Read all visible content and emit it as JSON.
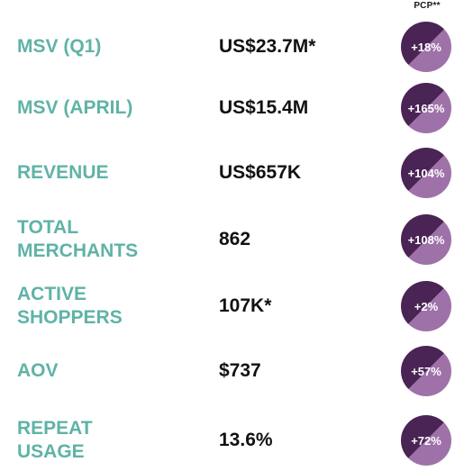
{
  "header": {
    "pcp_label": "PCP**"
  },
  "rows": [
    {
      "label": "MSV (Q1)",
      "value": "US$23.7M*",
      "change": "+18%"
    },
    {
      "label": "MSV (APRIL)",
      "value": "US$15.4M",
      "change": "+165%"
    },
    {
      "label": "REVENUE",
      "value": "US$657K",
      "change": "+104%"
    },
    {
      "label": "TOTAL\nMERCHANTS",
      "value": "862",
      "change": "+108%"
    },
    {
      "label": "ACTIVE\nSHOPPERS",
      "value": "107K*",
      "change": "+2%"
    },
    {
      "label": "AOV",
      "value": "$737",
      "change": "+57%"
    },
    {
      "label": "REPEAT\nUSAGE",
      "value": "13.6%",
      "change": "+72%"
    }
  ],
  "colors": {
    "label": "#5fb3a6",
    "value": "#111111",
    "badge_dark": "#4a2454",
    "badge_light": "#9e72a8"
  }
}
